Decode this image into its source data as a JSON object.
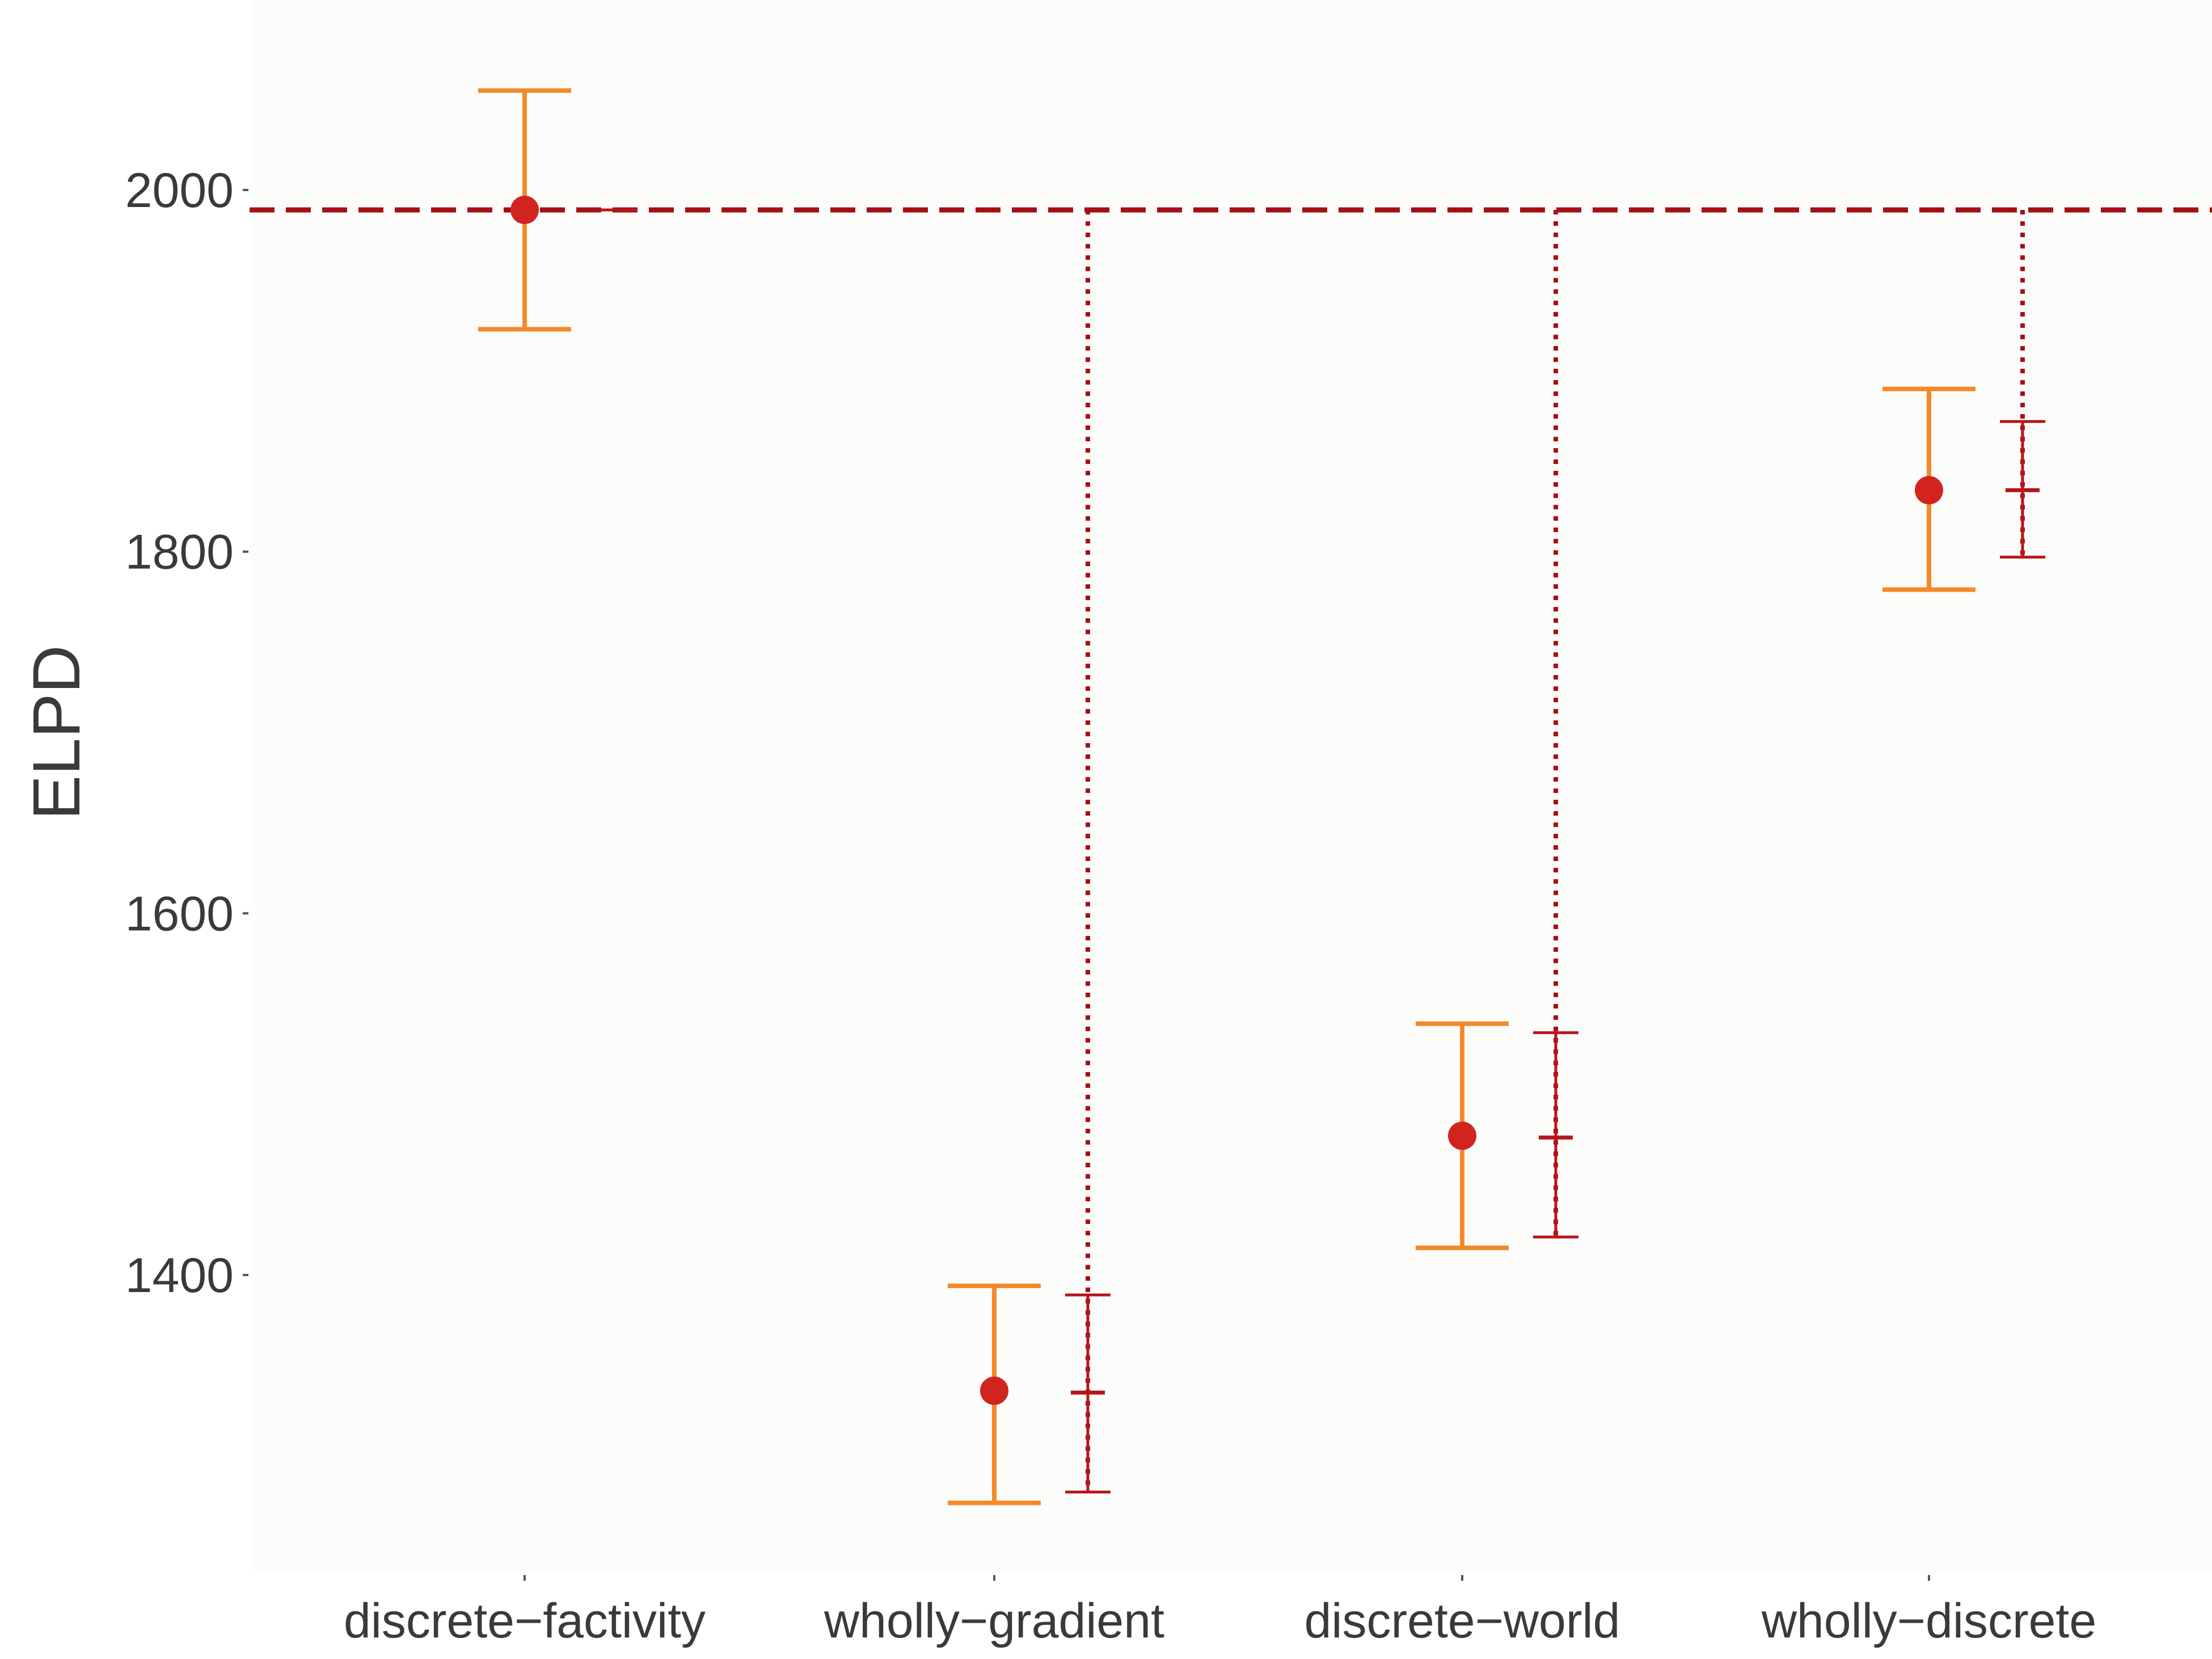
{
  "chart_data": {
    "type": "scatter",
    "title": "",
    "xlabel": "",
    "ylabel": "ELPD",
    "categories": [
      "discrete−factivity",
      "wholly−gradient",
      "discrete−world",
      "wholly−discrete"
    ],
    "y_ticks": [
      1400,
      1600,
      1800,
      2000
    ],
    "ylim": [
      1190,
      2068
    ],
    "reference_line": 1989,
    "grid": false,
    "legend": "none",
    "series": [
      {
        "role": "elpd_estimate",
        "values": [
          1989,
          1336,
          1477,
          1834
        ],
        "lower": [
          1923,
          1274,
          1415,
          1779
        ],
        "upper": [
          2055,
          1394,
          1539,
          1890
        ]
      },
      {
        "role": "elpd_difference",
        "values": [
          1989,
          1335,
          1476,
          1834
        ],
        "lower": [
          1989,
          1280,
          1421,
          1797
        ],
        "upper": [
          1989,
          1389,
          1534,
          1872
        ]
      }
    ],
    "colors": {
      "interval_main": "#f5892a",
      "point": "#d1241f",
      "interval_diff": "#b5151b",
      "reference": "#a50f15",
      "background": "#fcfcfa",
      "text": "#3a3a3a"
    }
  }
}
